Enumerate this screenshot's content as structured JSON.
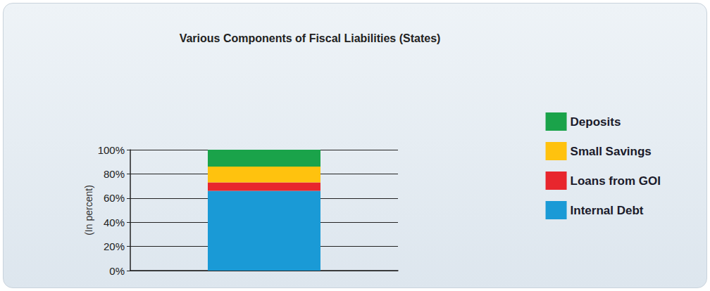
{
  "chart_data": {
    "type": "bar",
    "title": "Various Components of Fiscal Liabilities (States)",
    "categories": [
      null
    ],
    "series": [
      {
        "name": "Internal Debt",
        "color": "#1a9ad6",
        "values": [
          66
        ]
      },
      {
        "name": "Loans from GOI",
        "color": "#e8262d",
        "values": [
          7
        ]
      },
      {
        "name": "Small Savings",
        "color": "#ffc20e",
        "values": [
          13
        ]
      },
      {
        "name": "Deposits",
        "color": "#1aa34a",
        "values": [
          14
        ]
      }
    ],
    "y_label": "(In percent)",
    "ylim": [
      0,
      100
    ],
    "yticks": [
      {
        "value": 0,
        "label": "0%"
      },
      {
        "value": 20,
        "label": "20%"
      },
      {
        "value": 40,
        "label": "40%"
      },
      {
        "value": 60,
        "label": "60%"
      },
      {
        "value": 80,
        "label": "80%"
      },
      {
        "value": 100,
        "label": "100%"
      }
    ],
    "stacked": true,
    "grid": true,
    "legend": "right",
    "tick_labels": "y"
  }
}
